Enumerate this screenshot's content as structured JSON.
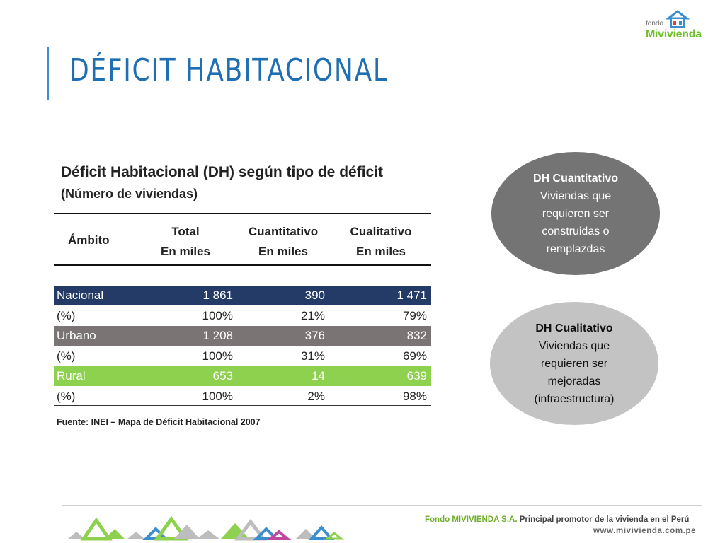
{
  "slide": {
    "title": "DÉFICIT HABITACIONAL"
  },
  "logo": {
    "fondo": "fondo",
    "name": "Mivivienda",
    "colors": {
      "green": "#6fbf2b",
      "blue": "#3b8fd0",
      "red": "#e0413a"
    }
  },
  "table": {
    "title": "Déficit Habitacional (DH) según tipo de déficit",
    "subtitle": "(Número de viviendas)",
    "headers": {
      "ambito": "Ámbito",
      "total": [
        "Total",
        "En miles"
      ],
      "cuantitativo": [
        "Cuantitativo",
        "En miles"
      ],
      "cualitativo": [
        "Cualitativo",
        "En miles"
      ]
    },
    "rows": [
      {
        "label": "Nacional",
        "total": "1 861",
        "cuantitativo": "390",
        "cualitativo": "1 471",
        "color": "#243a67"
      },
      {
        "label": "(%)",
        "total": "100%",
        "cuantitativo": "21%",
        "cualitativo": "79%"
      },
      {
        "label": "Urbano",
        "total": "1 208",
        "cuantitativo": "376",
        "cualitativo": "832",
        "color": "#7a7474"
      },
      {
        "label": "(%)",
        "total": "100%",
        "cuantitativo": "31%",
        "cualitativo": "69%"
      },
      {
        "label": "Rural",
        "total": "653",
        "cuantitativo": "14",
        "cualitativo": "639",
        "color": "#8dd14f"
      },
      {
        "label": "(%)",
        "total": "100%",
        "cuantitativo": "2%",
        "cualitativo": "98%"
      }
    ],
    "source": "Fuente: INEI – Mapa de Déficit Habitacional 2007"
  },
  "callouts": [
    {
      "head": "DH Cuantitativo",
      "lines": [
        "Viviendas que",
        "requieren ser",
        "construidas o",
        "remplazdas"
      ],
      "color": "#747474"
    },
    {
      "head": "DH Cualitativo",
      "lines": [
        "Viviendas que",
        "requieren ser",
        "mejoradas",
        "(infraestructura)"
      ],
      "color": "#c3c3c3"
    }
  ],
  "footer": {
    "org": "Fondo MIVIVIENDA S.A.",
    "tagline": "Principal promotor de la vivienda en el Perú",
    "url": "www.mivivienda.com.pe"
  }
}
